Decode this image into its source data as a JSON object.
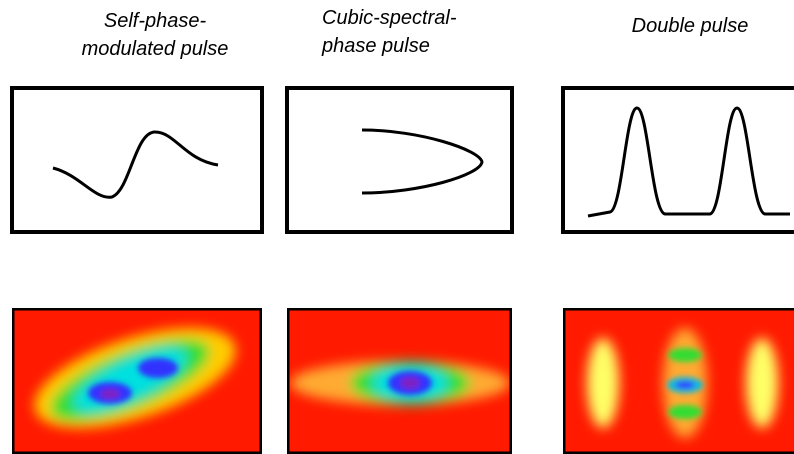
{
  "panels": [
    {
      "title_lines": [
        "Self-phase-",
        "modulated pulse"
      ]
    },
    {
      "title_lines": [
        "Cubic-spectral-",
        "phase pulse"
      ]
    },
    {
      "title_lines": [
        "Double pulse"
      ]
    }
  ]
}
